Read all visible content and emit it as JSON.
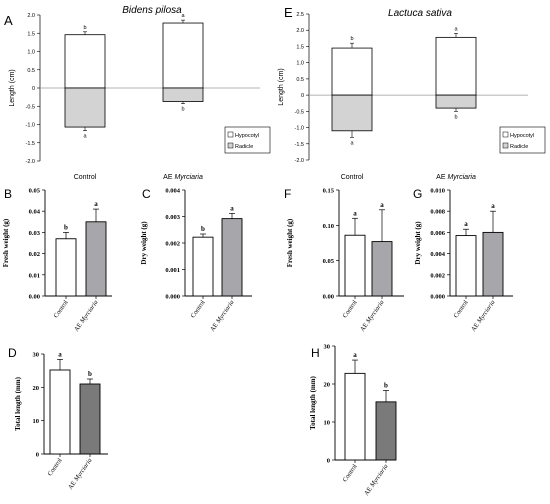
{
  "panels": {
    "A": {
      "letter": "A",
      "species": "Bidens pilosa"
    },
    "E": {
      "letter": "E",
      "species": "Lactuca sativa"
    }
  },
  "colors": {
    "hypocotyl_fill": "#ffffff",
    "radicle_fill": "#d3d3d3",
    "white_bar": "#ffffff",
    "gray_bar": "#a7a7ab",
    "dark_bar": "#7a7a7a"
  },
  "chart_data": [
    {
      "id": "A",
      "type": "bar",
      "title": "Bidens pilosa",
      "ylabel": "Length (cm)",
      "ylim": [
        -2.0,
        2.0
      ],
      "yticks": [
        "-2.0",
        "-1.5",
        "-1.0",
        "-0.5",
        "0",
        "0.5",
        "1.0",
        "1.5",
        "2.0"
      ],
      "categories": [
        "Control",
        "AE Myrciaria"
      ],
      "series": [
        {
          "name": "Hypocotyl",
          "values": [
            1.46,
            1.78
          ],
          "errors": [
            0.08,
            0.08
          ],
          "letters": [
            "b",
            "a"
          ]
        },
        {
          "name": "Radicle",
          "values": [
            -1.07,
            -0.37
          ],
          "errors": [
            0.1,
            0.06
          ],
          "letters": [
            "a",
            "b"
          ]
        }
      ],
      "legend": "bottom-right",
      "grid": false
    },
    {
      "id": "E",
      "type": "bar",
      "title": "Lactuca sativa",
      "ylabel": "Length (cm)",
      "ylim": [
        -2.0,
        2.5
      ],
      "yticks": [
        "-2.0",
        "-1.5",
        "-1.0",
        "-0.5",
        "0",
        "0.5",
        "1.0",
        "1.5",
        "2.0",
        "2.5"
      ],
      "categories": [
        "Control",
        "AE Myrciaria"
      ],
      "series": [
        {
          "name": "Hypocotyl",
          "values": [
            1.45,
            1.78
          ],
          "errors": [
            0.15,
            0.12
          ],
          "letters": [
            "b",
            "a"
          ]
        },
        {
          "name": "Radicle",
          "values": [
            -1.1,
            -0.4
          ],
          "errors": [
            0.2,
            0.1
          ],
          "letters": [
            "a",
            "b"
          ]
        }
      ],
      "legend": "bottom-right",
      "grid": false
    },
    {
      "id": "B",
      "type": "bar",
      "ylabel": "Fresh weight (g)",
      "ylim": [
        0,
        0.05
      ],
      "yticks": [
        "0.00",
        "0.01",
        "0.02",
        "0.03",
        "0.04",
        "0.05"
      ],
      "categories": [
        "Control",
        "AE Myrciaria"
      ],
      "values": [
        0.027,
        0.035
      ],
      "errors": [
        0.003,
        0.006
      ],
      "letters": [
        "b",
        "a"
      ]
    },
    {
      "id": "C",
      "type": "bar",
      "ylabel": "Dry weight (g)",
      "ylim": [
        0,
        0.004
      ],
      "yticks": [
        "0.000",
        "0.001",
        "0.002",
        "0.003",
        "0.004"
      ],
      "categories": [
        "Control",
        "AE Myrciaria"
      ],
      "values": [
        0.00222,
        0.00292
      ],
      "errors": [
        0.00012,
        0.0002
      ],
      "letters": [
        "b",
        "a"
      ]
    },
    {
      "id": "F",
      "type": "bar",
      "ylabel": "Fresh weight (g)",
      "ylim": [
        0,
        0.15
      ],
      "yticks": [
        "0.00",
        "0.05",
        "0.10",
        "0.15"
      ],
      "categories": [
        "Control",
        "AE Myrciaria"
      ],
      "values": [
        0.086,
        0.077
      ],
      "errors": [
        0.024,
        0.045
      ],
      "letters": [
        "a",
        "a"
      ]
    },
    {
      "id": "G",
      "type": "bar",
      "ylabel": "Dry weight (g)",
      "ylim": [
        0,
        0.01
      ],
      "yticks": [
        "0.000",
        "0.002",
        "0.004",
        "0.006",
        "0.008",
        "0.010"
      ],
      "categories": [
        "Control",
        "AE Myrciaria"
      ],
      "values": [
        0.0057,
        0.006
      ],
      "errors": [
        0.0006,
        0.002
      ],
      "letters": [
        "a",
        "a"
      ]
    },
    {
      "id": "D",
      "type": "bar",
      "ylabel": "Total length (mm)",
      "ylim": [
        0,
        30
      ],
      "yticks": [
        "0",
        "10",
        "20",
        "30"
      ],
      "categories": [
        "Control",
        "AE Myrciaria"
      ],
      "values": [
        25.2,
        21.0
      ],
      "errors": [
        3.2,
        1.5
      ],
      "letters": [
        "a",
        "b"
      ]
    },
    {
      "id": "H",
      "type": "bar",
      "ylabel": "Total length (mm)",
      "ylim": [
        0,
        30
      ],
      "yticks": [
        "0",
        "10",
        "20",
        "30"
      ],
      "categories": [
        "Control",
        "AE Myrciaria"
      ],
      "values": [
        22.8,
        15.3
      ],
      "errors": [
        3.5,
        3.0
      ],
      "letters": [
        "a",
        "b"
      ]
    }
  ]
}
